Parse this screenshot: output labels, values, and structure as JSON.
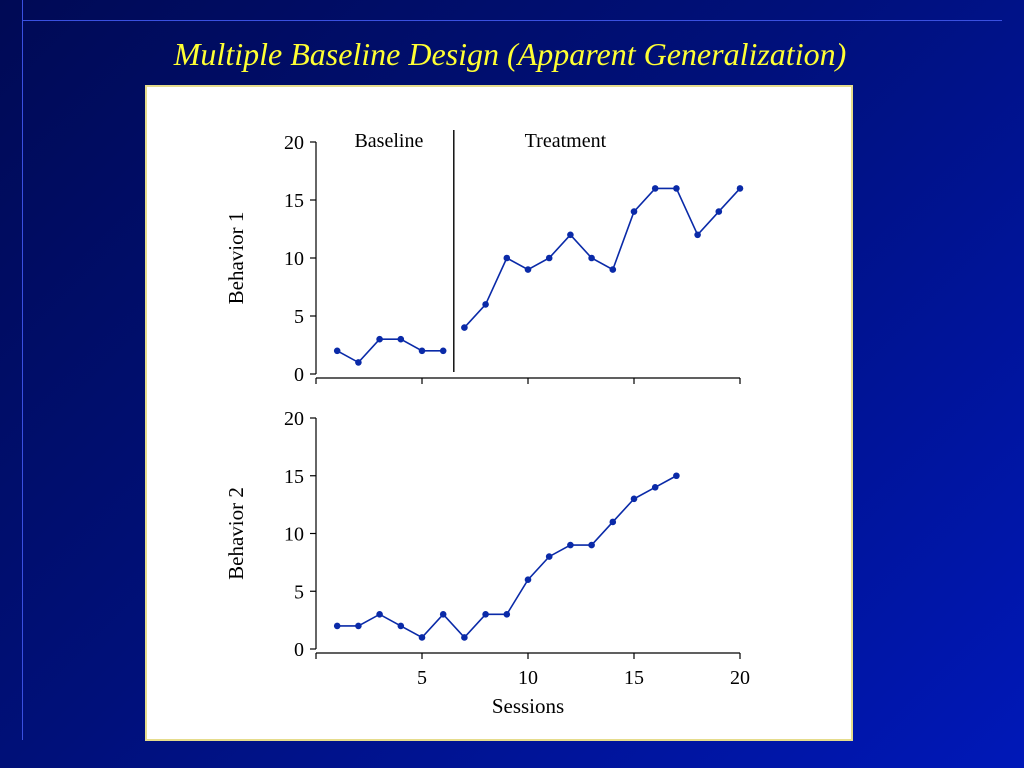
{
  "slide": {
    "title": "Multiple Baseline Design (Apparent Generalization)"
  },
  "chart_data": [
    {
      "type": "line",
      "ylabel": "Behavior 1",
      "xlim": [
        0,
        20
      ],
      "ylim": [
        0,
        20
      ],
      "yticks": [
        0,
        5,
        10,
        15,
        20
      ],
      "xticks": [
        5,
        10,
        15,
        20
      ],
      "show_x_tick_labels": false,
      "phase_change_after": 6.5,
      "phase_labels": [
        "Baseline",
        "Treatment"
      ],
      "line_color": "#0a2aa8",
      "segments": [
        {
          "x": [
            1,
            2,
            3,
            4,
            5,
            6
          ],
          "y": [
            2,
            1,
            3,
            3,
            2,
            2
          ]
        },
        {
          "x": [
            7,
            8,
            9,
            10,
            11,
            12,
            13,
            14,
            15,
            16,
            17,
            18,
            19,
            20
          ],
          "y": [
            4,
            6,
            10,
            9,
            10,
            12,
            10,
            9,
            14,
            16,
            16,
            12,
            14,
            16
          ]
        }
      ]
    },
    {
      "type": "line",
      "ylabel": "Behavior 2",
      "xlabel": "Sessions",
      "xlim": [
        0,
        20
      ],
      "ylim": [
        0,
        20
      ],
      "yticks": [
        0,
        5,
        10,
        15,
        20
      ],
      "xticks": [
        5,
        10,
        15,
        20
      ],
      "show_x_tick_labels": true,
      "line_color": "#0a2aa8",
      "segments": [
        {
          "x": [
            1,
            2,
            3,
            4,
            5,
            6,
            7,
            8,
            9,
            10,
            11,
            12,
            13,
            14,
            15,
            16,
            17
          ],
          "y": [
            2,
            2,
            3,
            2,
            1,
            3,
            1,
            3,
            3,
            6,
            8,
            9,
            9,
            11,
            13,
            14,
            15
          ]
        }
      ]
    }
  ]
}
